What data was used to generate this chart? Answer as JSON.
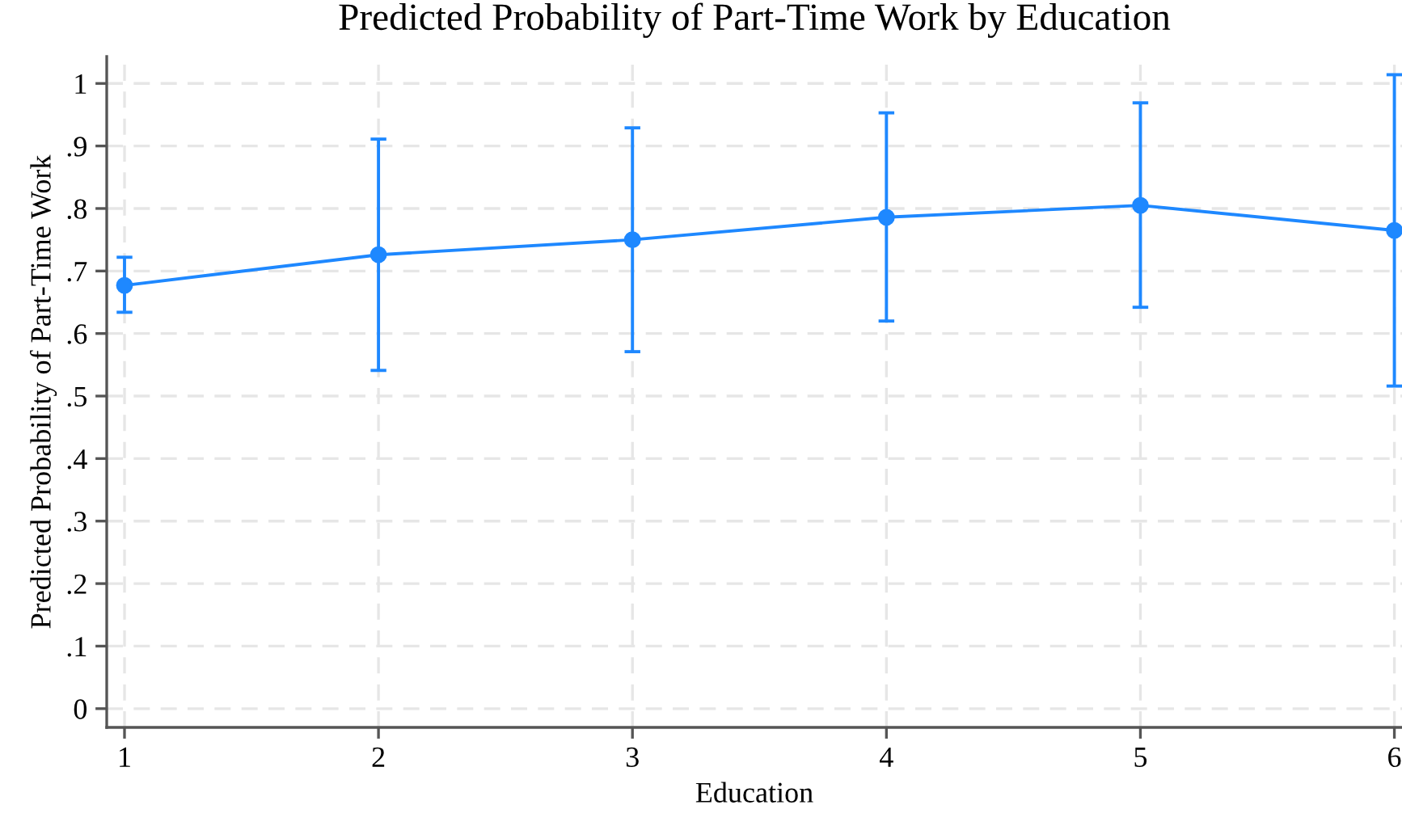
{
  "chart_data": {
    "type": "line",
    "title": "Predicted Probability of Part-Time Work by Education",
    "xlabel": "Education",
    "ylabel": "Predicted Probability of Part-Time Work",
    "x": [
      1,
      2,
      3,
      4,
      5,
      6
    ],
    "series": [
      {
        "color": "#1e88ff",
        "values": [
          0.677,
          0.726,
          0.75,
          0.786,
          0.805,
          0.765
        ],
        "errors": [
          [
            0.634,
            0.722
          ],
          [
            0.541,
            0.911
          ],
          [
            0.571,
            0.929
          ],
          [
            0.62,
            0.953
          ],
          [
            0.642,
            0.969
          ],
          [
            0.516,
            1.014
          ]
        ]
      }
    ],
    "marker": "circle",
    "line_style": "solid",
    "xlim": [
      0.93,
      6.03
    ],
    "xticks": [
      1,
      2,
      3,
      4,
      5,
      6
    ],
    "ylim": [
      -0.03,
      1.043
    ],
    "yticks": [
      {
        "value": 0,
        "label": "0"
      },
      {
        "value": 0.1,
        "label": ".1"
      },
      {
        "value": 0.2,
        "label": ".2"
      },
      {
        "value": 0.3,
        "label": ".3"
      },
      {
        "value": 0.4,
        "label": ".4"
      },
      {
        "value": 0.5,
        "label": ".5"
      },
      {
        "value": 0.6,
        "label": ".6"
      },
      {
        "value": 0.7,
        "label": ".7"
      },
      {
        "value": 0.8,
        "label": ".8"
      },
      {
        "value": 0.9,
        "label": ".9"
      },
      {
        "value": 1,
        "label": "1"
      }
    ],
    "grid": true
  }
}
